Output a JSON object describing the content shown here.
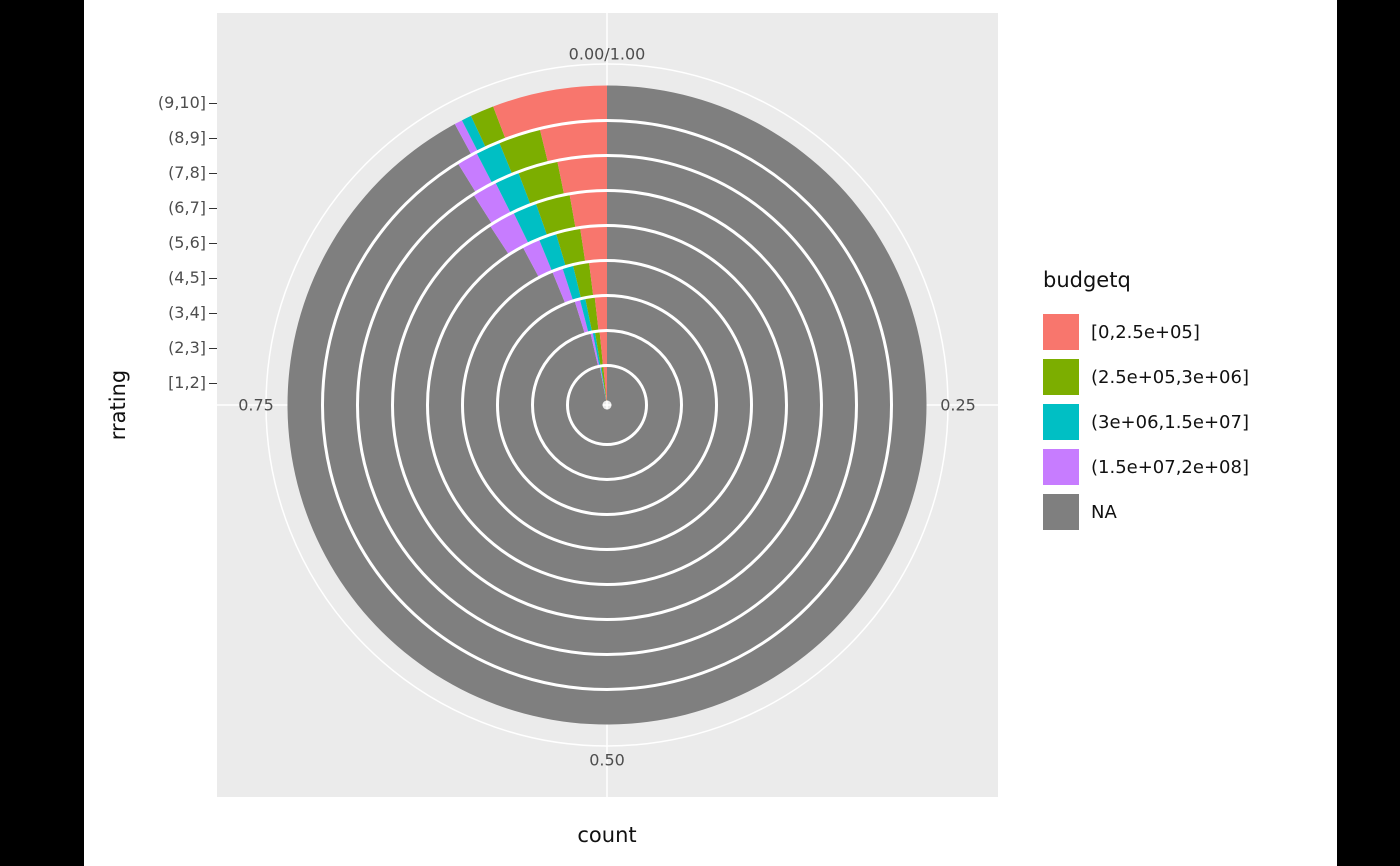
{
  "figure": {
    "outer_bg": "#000000",
    "plot_bg": "#ffffff",
    "panel_bg": "#ebebeb",
    "grid_color": "#ffffff"
  },
  "axis": {
    "y_title": "rrating",
    "x_title": "count",
    "y_labels": [
      "[1,2]",
      "(2,3]",
      "(3,4]",
      "(4,5]",
      "(5,6]",
      "(6,7]",
      "(7,8]",
      "(8,9]",
      "(9,10]"
    ],
    "theta_labels": [
      {
        "text": "0.00/1.00",
        "pos": "top"
      },
      {
        "text": "0.25",
        "pos": "right"
      },
      {
        "text": "0.50",
        "pos": "bottom"
      },
      {
        "text": "0.75",
        "pos": "left"
      }
    ]
  },
  "legend": {
    "title": "budgetq",
    "entries": [
      {
        "label": "[0,2.5e+05]",
        "color": "#F8766D"
      },
      {
        "label": "(2.5e+05,3e+06]",
        "color": "#7CAE00"
      },
      {
        "label": "(3e+06,1.5e+07]",
        "color": "#00BFC4"
      },
      {
        "label": "(1.5e+07,2e+08]",
        "color": "#C77CFF"
      },
      {
        "label": "NA",
        "color": "#7F7F7F"
      }
    ]
  },
  "chart_data": {
    "type": "bar",
    "subtype": "stacked-fill-polar",
    "coord": "polar, theta = count proportion (clockwise from top), radius = rating bin",
    "title": "",
    "xlabel": "count",
    "ylabel": "rrating",
    "theta_ticks": [
      "0.00/1.00",
      "0.25",
      "0.50",
      "0.75"
    ],
    "categories": [
      "[1,2]",
      "(2,3]",
      "(3,4]",
      "(4,5]",
      "(5,6]",
      "(6,7]",
      "(7,8]",
      "(8,9]",
      "(9,10]"
    ],
    "series": [
      {
        "name": "[0,2.5e+05]",
        "color": "#F8766D",
        "values": [
          0.015,
          0.016,
          0.018,
          0.02,
          0.024,
          0.028,
          0.032,
          0.038,
          0.058
        ]
      },
      {
        "name": "(2.5e+05,3e+06]",
        "color": "#7CAE00",
        "values": [
          0.008,
          0.01,
          0.014,
          0.018,
          0.022,
          0.026,
          0.026,
          0.024,
          0.012
        ]
      },
      {
        "name": "(3e+06,1.5e+07]",
        "color": "#00BFC4",
        "values": [
          0.004,
          0.005,
          0.008,
          0.012,
          0.016,
          0.018,
          0.016,
          0.014,
          0.005
        ]
      },
      {
        "name": "(1.5e+07,2e+08]",
        "color": "#C77CFF",
        "values": [
          0.003,
          0.005,
          0.008,
          0.012,
          0.016,
          0.02,
          0.016,
          0.012,
          0.004
        ]
      },
      {
        "name": "NA",
        "color": "#7F7F7F",
        "values": [
          0.97,
          0.964,
          0.952,
          0.938,
          0.922,
          0.908,
          0.91,
          0.912,
          0.921
        ]
      }
    ]
  }
}
